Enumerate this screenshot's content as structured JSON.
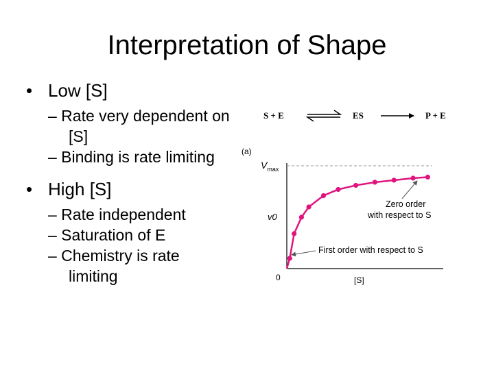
{
  "title": "Interpretation of Shape",
  "bullets": {
    "low": {
      "marker": "•",
      "label": "Low [S]",
      "subs": [
        "– Rate very dependent on [S]",
        "– Binding is rate limiting"
      ]
    },
    "high": {
      "marker": "•",
      "label": "High [S]",
      "subs": [
        "– Rate independent",
        "– Saturation of E",
        "– Chemistry is rate limiting"
      ]
    }
  },
  "reaction": {
    "reactants": "S + E",
    "complex": "ES",
    "products": "P + E"
  },
  "colors": {
    "curve": "#e0147f",
    "vmax_line": "#9a9a9a",
    "text": "#000000"
  },
  "chart_data": {
    "type": "line",
    "panel_label": "(a)",
    "ylabel": "v0",
    "xlabel": "[S]",
    "origin_label": "0",
    "vmax_label": {
      "main": "V",
      "sub": "max"
    },
    "vmax": 1.0,
    "xlim": [
      0,
      10
    ],
    "ylim": [
      0,
      1.0
    ],
    "series": [
      {
        "x": [
          0.2,
          0.5,
          1.0,
          1.5,
          2.5,
          3.5,
          4.7,
          6.0,
          7.3,
          8.6,
          9.6
        ],
        "y": [
          0.1,
          0.34,
          0.5,
          0.6,
          0.71,
          0.77,
          0.81,
          0.84,
          0.86,
          0.88,
          0.89
        ]
      }
    ],
    "annotations": [
      {
        "text_lines": [
          "Zero order",
          "with respect to S"
        ],
        "points_to": "plateau"
      },
      {
        "text_lines": [
          "First order with respect to S"
        ],
        "points_to": "initial rise"
      }
    ]
  }
}
